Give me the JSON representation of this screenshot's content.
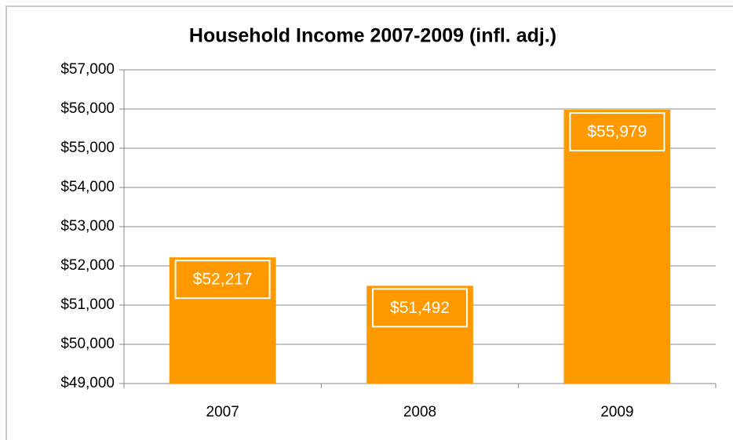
{
  "chart_data": {
    "type": "bar",
    "title": "Household Income 2007-2009 (infl. adj.)",
    "categories": [
      "2007",
      "2008",
      "2009"
    ],
    "values": [
      52217,
      51492,
      55979
    ],
    "value_labels": [
      "$52,217",
      "$51,492",
      "$55,979"
    ],
    "color": "#ff9900",
    "ylim": [
      49000,
      57000
    ],
    "yticks": [
      {
        "value": 49000,
        "label": "$49,000"
      },
      {
        "value": 50000,
        "label": "$50,000"
      },
      {
        "value": 51000,
        "label": "$51,000"
      },
      {
        "value": 52000,
        "label": "$52,000"
      },
      {
        "value": 53000,
        "label": "$53,000"
      },
      {
        "value": 54000,
        "label": "$54,000"
      },
      {
        "value": 55000,
        "label": "$55,000"
      },
      {
        "value": 56000,
        "label": "$56,000"
      },
      {
        "value": 57000,
        "label": "$57,000"
      }
    ],
    "grid": true
  }
}
